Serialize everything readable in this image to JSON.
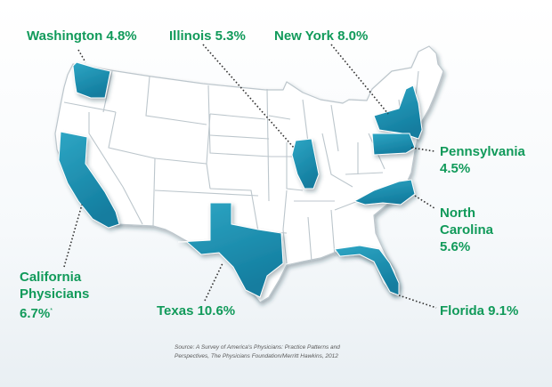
{
  "colors": {
    "highlight_state": "#1a8fb0",
    "base_state": "#ffffff",
    "borders": "#bcc6cc",
    "label_text": "#119a5a",
    "leader_line": "#333333"
  },
  "labels": {
    "washington": "Washington 4.8%",
    "illinois": "Illinois 5.3%",
    "new_york": "New York 8.0%",
    "pennsylvania_name": "Pennsylvania",
    "pennsylvania_value": "4.5%",
    "north_carolina_line1": "North",
    "north_carolina_line2": "Carolina",
    "north_carolina_value": "5.6%",
    "florida": "Florida 9.1%",
    "texas": "Texas 10.6%",
    "california_line1": "California",
    "california_line2": "Physicians",
    "california_value": "6.7%",
    "california_note": "*"
  },
  "source": {
    "line1": "Source: A Survey of America's Physicians: Practice Patterns and",
    "line2": "Perspectives, The Physicians Foundation/Merritt Hawkins, 2012"
  }
}
